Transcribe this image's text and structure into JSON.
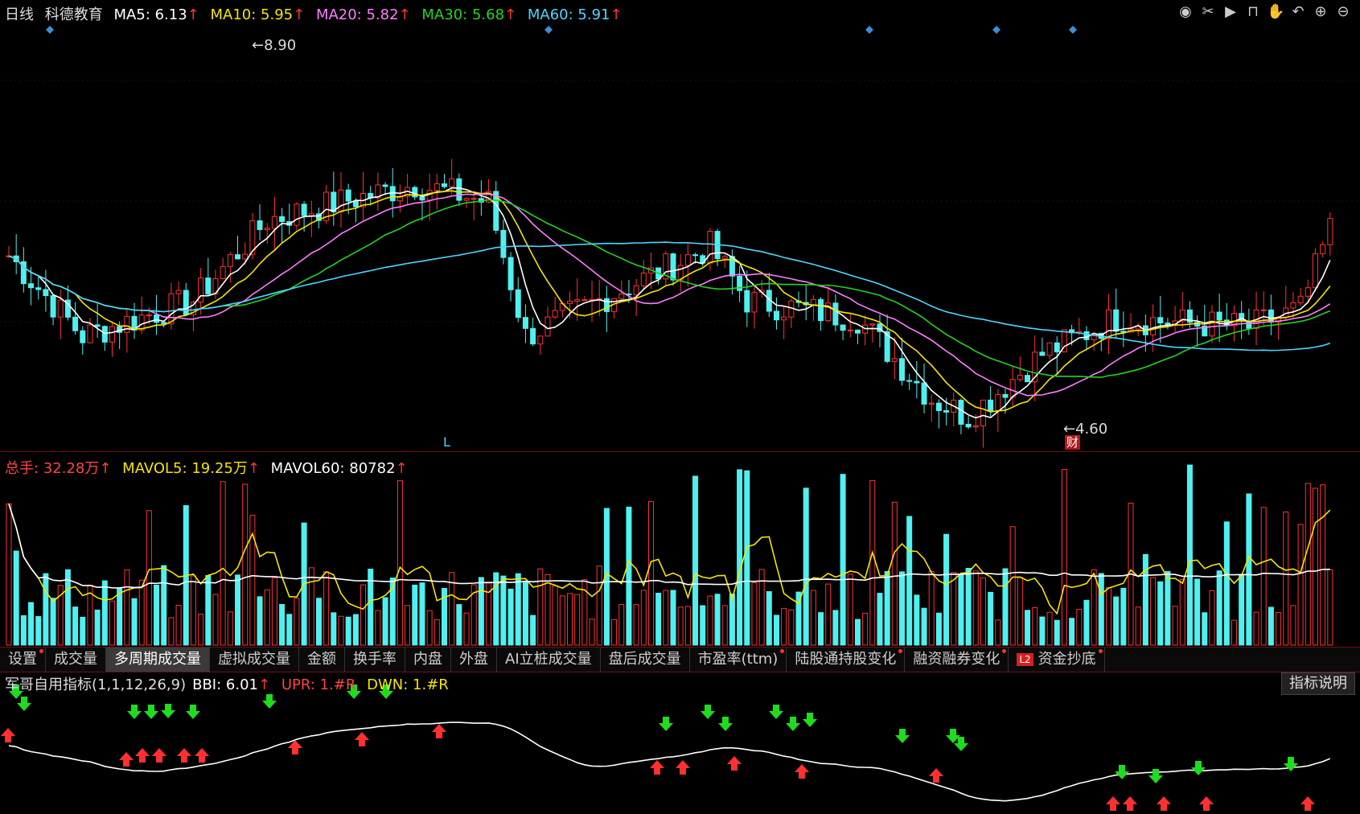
{
  "price_panel": {
    "period": "日线",
    "stock_name": "科德教育",
    "ma_labels": [
      {
        "key": "ma5",
        "label": "MA5:",
        "value": "6.13",
        "arrow": "↑"
      },
      {
        "key": "ma10",
        "label": "MA10:",
        "value": "5.95",
        "arrow": "↑"
      },
      {
        "key": "ma20",
        "label": "MA20:",
        "value": "5.82",
        "arrow": "↑"
      },
      {
        "key": "ma30",
        "label": "MA30:",
        "value": "5.68",
        "arrow": "↑"
      },
      {
        "key": "ma60",
        "label": "MA60:",
        "value": "5.91",
        "arrow": "↑"
      }
    ],
    "high_label": "8.90",
    "low_label": "4.60",
    "bottom_marker": "L",
    "finance_badge": "财"
  },
  "toolbar_icons": [
    "eye-icon",
    "scissors-icon",
    "play-icon",
    "lock-icon",
    "hand-icon",
    "undo-icon",
    "zoom-in-icon",
    "zoom-out-icon"
  ],
  "volume_panel": {
    "total_label": "总手:",
    "total_value": "32.28万",
    "mavol5_label": "MAVOL5:",
    "mavol5_value": "19.25万",
    "mavol60_label": "MAVOL60:",
    "mavol60_value": "80782",
    "arrow": "↑"
  },
  "tabs": [
    {
      "label": "设置",
      "dot": true
    },
    {
      "label": "成交量",
      "dot": false
    },
    {
      "label": "多周期成交量",
      "dot": false,
      "active": true
    },
    {
      "label": "虚拟成交量",
      "dot": false
    },
    {
      "label": "金额",
      "dot": false
    },
    {
      "label": "换手率",
      "dot": false
    },
    {
      "label": "内盘",
      "dot": false
    },
    {
      "label": "外盘",
      "dot": false
    },
    {
      "label": "AI立桩成交量",
      "dot": false
    },
    {
      "label": "盘后成交量",
      "dot": false
    },
    {
      "label": "市盈率(ttm)",
      "dot": true
    },
    {
      "label": "陆股通持股变化",
      "dot": true
    },
    {
      "label": "融资融券变化",
      "dot": true
    },
    {
      "label": "资金抄底",
      "dot": true,
      "badge": "L2"
    }
  ],
  "indicator_panel": {
    "name": "军哥自用指标(1,1,12,26,9)",
    "bbi_label": "BBI:",
    "bbi_value": "6.01",
    "upr_label": "UPR:",
    "upr_value": "1.#R",
    "dwn_label": "DWN:",
    "dwn_value": "1.#R",
    "explain_button": "指标说明"
  },
  "colors": {
    "up": "#ff3333",
    "down": "#4ff0f0",
    "ma5": "#ffffff",
    "ma10": "#f5e500",
    "ma20": "#ff7cff",
    "ma30": "#22d422",
    "ma60": "#4fd5ff",
    "border": "#6e1010"
  }
}
